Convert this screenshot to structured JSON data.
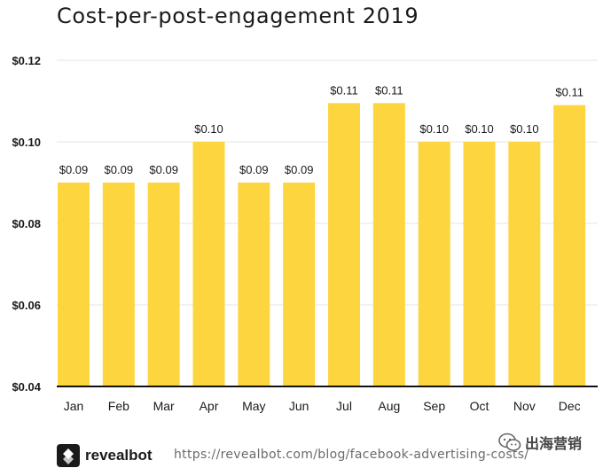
{
  "chart_data": {
    "type": "bar",
    "title": "Cost-per-post-engagement 2019",
    "categories": [
      "Jan",
      "Feb",
      "Mar",
      "Apr",
      "May",
      "Jun",
      "Jul",
      "Aug",
      "Sep",
      "Oct",
      "Nov",
      "Dec"
    ],
    "values": [
      0.09,
      0.09,
      0.09,
      0.1,
      0.09,
      0.09,
      0.1095,
      0.1095,
      0.1,
      0.1,
      0.1,
      0.109
    ],
    "data_labels": [
      "$0.09",
      "$0.09",
      "$0.09",
      "$0.10",
      "$0.09",
      "$0.09",
      "$0.11",
      "$0.11",
      "$0.10",
      "$0.10",
      "$0.10",
      "$0.11"
    ],
    "yticks": [
      0.04,
      0.06,
      0.08,
      0.1,
      0.12
    ],
    "ytick_labels": [
      "$0.04",
      "$0.06",
      "$0.08",
      "$0.10",
      "$0.12"
    ],
    "ylim": [
      0.04,
      0.12
    ],
    "grid": true,
    "bar_color": "#FDD53F",
    "xlabel": "",
    "ylabel": ""
  },
  "footer": {
    "brand": "revealbot",
    "logo_icon": "revealbot-logo-icon",
    "url": "https://revealbot.com/blog/facebook-advertising-costs/"
  },
  "watermark": {
    "icon": "wechat-icon",
    "text": "出海营销"
  }
}
